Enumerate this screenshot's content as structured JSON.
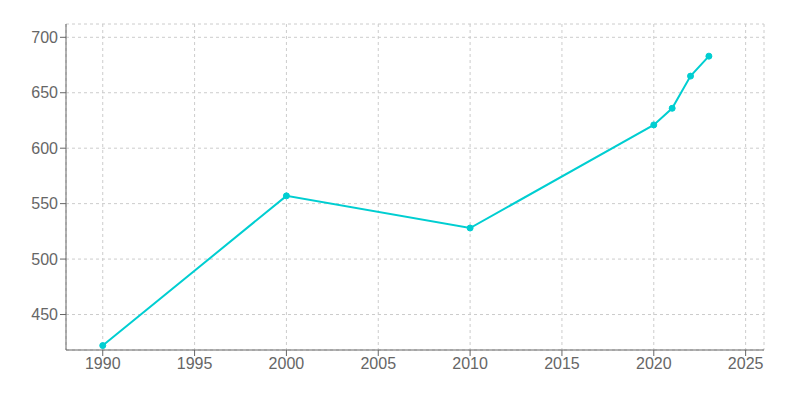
{
  "chart_data": {
    "type": "line",
    "x": [
      1990,
      2000,
      2010,
      2020,
      2021,
      2022,
      2023
    ],
    "values": [
      422,
      557,
      528,
      621,
      636,
      665,
      683
    ],
    "color": "#00CED1",
    "marker": "circle",
    "xlim": [
      1988,
      2026
    ],
    "ylim": [
      418,
      712
    ],
    "xticks": [
      1990,
      1995,
      2000,
      2005,
      2010,
      2015,
      2020,
      2025
    ],
    "yticks": [
      450,
      500,
      550,
      600,
      650,
      700
    ],
    "grid": true
  }
}
